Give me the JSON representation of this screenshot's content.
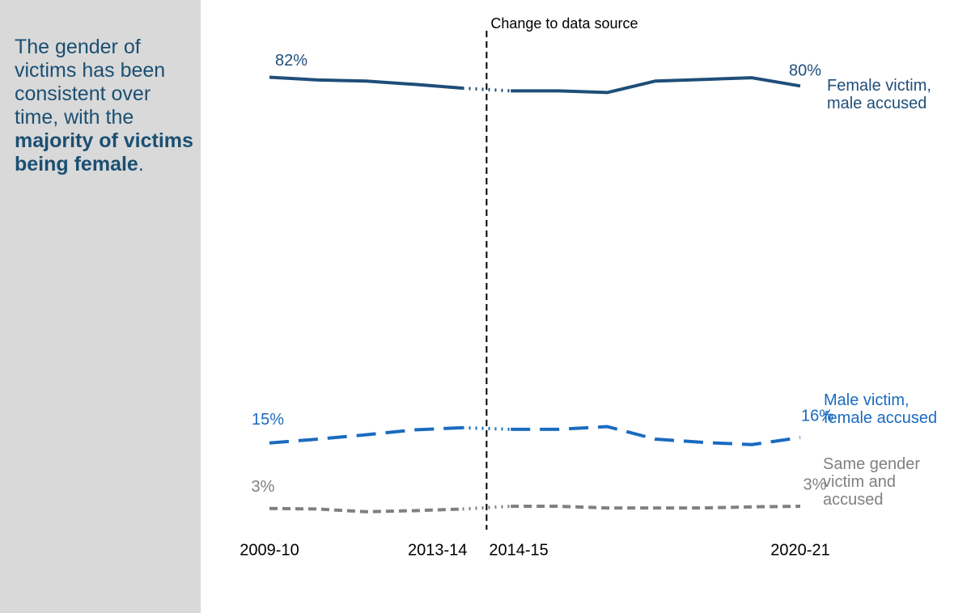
{
  "sidebar": {
    "text": "The gender of victims has been consistent over time, with the ",
    "bold": "majority of victims being female",
    "end": "."
  },
  "chart_data": {
    "type": "line",
    "categories": [
      "2009-10",
      null,
      null,
      null,
      "2013-14",
      "2014-15",
      null,
      null,
      null,
      null,
      null,
      "2020-21"
    ],
    "annotation": {
      "text": "Change to data source",
      "between": [
        "2013-14",
        "2014-15"
      ]
    },
    "ylim": [
      0,
      100
    ],
    "series": [
      {
        "name": "Female victim,\nmale accused",
        "color": "#1f4e79",
        "line_style": "solid",
        "values": [
          82,
          81.5,
          81.3,
          80.7,
          80,
          79.5,
          79.5,
          79.2,
          81.3,
          81.6,
          81.9,
          80.4
        ],
        "value_labels": [
          "82%",
          null,
          null,
          null,
          null,
          null,
          null,
          null,
          null,
          null,
          null,
          "80%"
        ]
      },
      {
        "name": "Male victim,\nfemale accused",
        "color": "#1a6bbf",
        "line_style": "dashed",
        "values": [
          15,
          15.7,
          16.5,
          17.4,
          17.8,
          17.5,
          17.5,
          18,
          15.7,
          15.1,
          14.7,
          16
        ],
        "value_labels": [
          "15%",
          null,
          null,
          null,
          null,
          null,
          null,
          null,
          null,
          null,
          null,
          "16%"
        ]
      },
      {
        "name": "Same gender\nvictim and\naccused",
        "color": "#808080",
        "line_style": "short-dashed",
        "values": [
          3,
          2.9,
          2.4,
          2.6,
          2.9,
          3.4,
          3.4,
          3.1,
          3.1,
          3.1,
          3.3,
          3.4
        ],
        "value_labels": [
          "3%",
          null,
          null,
          null,
          null,
          null,
          null,
          null,
          null,
          null,
          null,
          "3%"
        ]
      }
    ]
  }
}
